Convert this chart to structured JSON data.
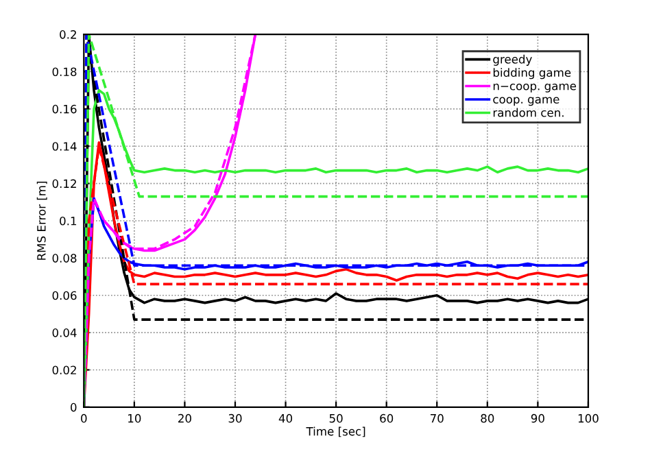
{
  "chart_data": {
    "type": "line",
    "xlabel": "Time [sec]",
    "ylabel": "RMS Error [m]",
    "xlim": [
      0,
      100
    ],
    "ylim": [
      0,
      0.2
    ],
    "xticks": [
      0,
      10,
      20,
      30,
      40,
      50,
      60,
      70,
      80,
      90,
      100
    ],
    "yticks": [
      0,
      0.02,
      0.04,
      0.06,
      0.08,
      0.1,
      0.12,
      0.14,
      0.16,
      0.18,
      0.2
    ],
    "grid": true,
    "legend": "top right",
    "line_style": "solid",
    "series": [
      {
        "name": "greedy",
        "color": "#000000",
        "x": [
          0,
          1,
          2,
          3,
          4,
          5,
          6,
          7,
          8,
          9,
          10,
          12,
          14,
          16,
          18,
          20,
          22,
          24,
          26,
          28,
          30,
          32,
          34,
          36,
          38,
          40,
          42,
          44,
          46,
          48,
          50,
          52,
          54,
          56,
          58,
          60,
          62,
          64,
          66,
          68,
          70,
          72,
          74,
          76,
          78,
          80,
          82,
          84,
          86,
          88,
          90,
          92,
          94,
          96,
          98,
          100
        ],
        "values": [
          0,
          0.2,
          0.17,
          0.15,
          0.135,
          0.12,
          0.1,
          0.085,
          0.072,
          0.063,
          0.059,
          0.056,
          0.058,
          0.057,
          0.057,
          0.058,
          0.057,
          0.056,
          0.057,
          0.058,
          0.057,
          0.059,
          0.057,
          0.057,
          0.056,
          0.057,
          0.058,
          0.057,
          0.058,
          0.057,
          0.061,
          0.058,
          0.057,
          0.057,
          0.058,
          0.058,
          0.058,
          0.057,
          0.058,
          0.059,
          0.06,
          0.057,
          0.057,
          0.057,
          0.056,
          0.057,
          0.057,
          0.058,
          0.057,
          0.058,
          0.057,
          0.056,
          0.057,
          0.056,
          0.056,
          0.058
        ]
      },
      {
        "name": "bidding game",
        "color": "#ff0000",
        "x": [
          0,
          1,
          2,
          3,
          4,
          5,
          6,
          7,
          8,
          9,
          10,
          12,
          14,
          16,
          18,
          20,
          22,
          24,
          26,
          28,
          30,
          32,
          34,
          36,
          38,
          40,
          42,
          44,
          46,
          48,
          50,
          52,
          54,
          56,
          58,
          60,
          62,
          64,
          66,
          68,
          70,
          72,
          74,
          76,
          78,
          80,
          82,
          84,
          86,
          88,
          90,
          92,
          94,
          96,
          98,
          100
        ],
        "values": [
          0,
          0.05,
          0.12,
          0.142,
          0.13,
          0.115,
          0.1,
          0.088,
          0.078,
          0.073,
          0.071,
          0.07,
          0.072,
          0.071,
          0.07,
          0.07,
          0.071,
          0.071,
          0.072,
          0.071,
          0.07,
          0.071,
          0.072,
          0.071,
          0.071,
          0.071,
          0.072,
          0.071,
          0.07,
          0.071,
          0.073,
          0.074,
          0.072,
          0.071,
          0.071,
          0.07,
          0.068,
          0.07,
          0.071,
          0.071,
          0.071,
          0.07,
          0.071,
          0.071,
          0.072,
          0.071,
          0.072,
          0.07,
          0.069,
          0.071,
          0.072,
          0.071,
          0.07,
          0.071,
          0.07,
          0.071
        ]
      },
      {
        "name": "n−coop. game",
        "color": "#ff00ff",
        "x": [
          0,
          1,
          2,
          3,
          4,
          5,
          6,
          7,
          8,
          9,
          10,
          12,
          14,
          16,
          18,
          20,
          22,
          24,
          26,
          28,
          30,
          32,
          34
        ],
        "values": [
          0,
          0.08,
          0.112,
          0.105,
          0.1,
          0.097,
          0.094,
          0.09,
          0.088,
          0.086,
          0.085,
          0.084,
          0.084,
          0.086,
          0.088,
          0.09,
          0.095,
          0.102,
          0.112,
          0.125,
          0.145,
          0.17,
          0.2
        ]
      },
      {
        "name": "coop. game",
        "color": "#0000ff",
        "x": [
          0,
          1,
          2,
          3,
          4,
          5,
          6,
          7,
          8,
          9,
          10,
          12,
          14,
          16,
          18,
          20,
          22,
          24,
          26,
          28,
          30,
          32,
          34,
          36,
          38,
          40,
          42,
          44,
          46,
          48,
          50,
          52,
          54,
          56,
          58,
          60,
          62,
          64,
          66,
          68,
          70,
          72,
          74,
          76,
          78,
          80,
          82,
          84,
          86,
          88,
          90,
          92,
          94,
          96,
          98,
          100
        ],
        "values": [
          0,
          0.08,
          0.112,
          0.105,
          0.097,
          0.092,
          0.087,
          0.083,
          0.08,
          0.078,
          0.077,
          0.076,
          0.076,
          0.075,
          0.075,
          0.074,
          0.075,
          0.075,
          0.076,
          0.075,
          0.075,
          0.075,
          0.076,
          0.075,
          0.075,
          0.076,
          0.077,
          0.076,
          0.075,
          0.075,
          0.076,
          0.075,
          0.075,
          0.075,
          0.076,
          0.075,
          0.076,
          0.076,
          0.077,
          0.076,
          0.077,
          0.076,
          0.077,
          0.078,
          0.076,
          0.076,
          0.075,
          0.076,
          0.076,
          0.077,
          0.076,
          0.076,
          0.076,
          0.076,
          0.076,
          0.078
        ]
      },
      {
        "name": "random cen.",
        "color": "#33ee33",
        "x": [
          0,
          1,
          2,
          3,
          4,
          5,
          6,
          7,
          8,
          9,
          10,
          12,
          14,
          16,
          18,
          20,
          22,
          24,
          26,
          28,
          30,
          32,
          34,
          36,
          38,
          40,
          42,
          44,
          46,
          48,
          50,
          52,
          54,
          56,
          58,
          60,
          62,
          64,
          66,
          68,
          70,
          72,
          74,
          76,
          78,
          80,
          82,
          84,
          86,
          88,
          90,
          92,
          94,
          96,
          98,
          100
        ],
        "values": [
          0,
          0.09,
          0.16,
          0.17,
          0.168,
          0.16,
          0.155,
          0.148,
          0.14,
          0.133,
          0.127,
          0.126,
          0.127,
          0.128,
          0.127,
          0.127,
          0.126,
          0.127,
          0.126,
          0.127,
          0.126,
          0.127,
          0.127,
          0.127,
          0.126,
          0.127,
          0.127,
          0.127,
          0.128,
          0.126,
          0.127,
          0.127,
          0.127,
          0.127,
          0.126,
          0.127,
          0.127,
          0.128,
          0.126,
          0.127,
          0.127,
          0.126,
          0.127,
          0.128,
          0.127,
          0.129,
          0.126,
          0.128,
          0.129,
          0.127,
          0.127,
          0.128,
          0.127,
          0.127,
          0.126,
          0.128
        ]
      },
      {
        "color": "#000000",
        "line_style": "dashed",
        "x": [
          0,
          0.5,
          10,
          100
        ],
        "values": [
          0,
          0.2,
          0.047,
          0.047
        ]
      },
      {
        "color": "#ff0000",
        "line_style": "dashed",
        "x": [
          0,
          1,
          3,
          10,
          100
        ],
        "values": [
          0,
          0.1,
          0.14,
          0.066,
          0.066
        ]
      },
      {
        "color": "#ff00ff",
        "line_style": "dashed",
        "x": [
          0,
          1,
          2,
          4,
          6,
          8,
          10,
          14,
          18,
          22,
          26,
          30,
          34
        ],
        "values": [
          0,
          0.08,
          0.112,
          0.1,
          0.094,
          0.088,
          0.085,
          0.085,
          0.09,
          0.097,
          0.115,
          0.15,
          0.2
        ]
      },
      {
        "color": "#0000ff",
        "line_style": "dashed",
        "x": [
          0,
          0.5,
          10,
          100
        ],
        "values": [
          0,
          0.2,
          0.076,
          0.076
        ]
      },
      {
        "color": "#33ee33",
        "line_style": "dashed",
        "x": [
          0,
          1,
          11,
          100
        ],
        "values": [
          0,
          0.2,
          0.113,
          0.113
        ]
      }
    ]
  }
}
